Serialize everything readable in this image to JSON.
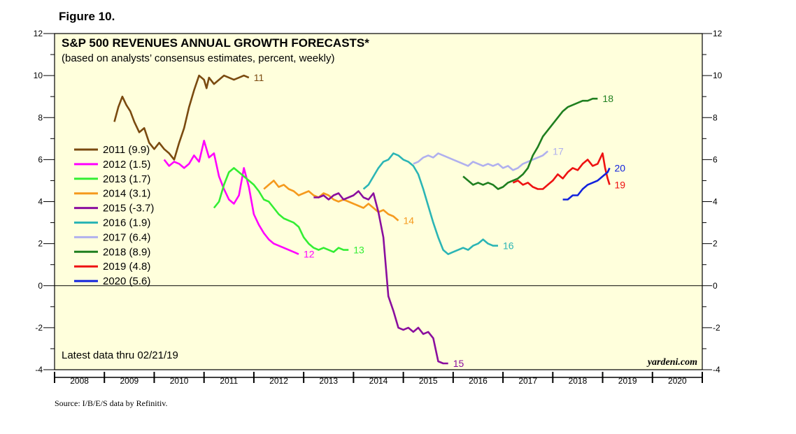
{
  "figure_label": "Figure 10.",
  "source": "Source: I/B/E/S data by Refinitiv.",
  "chart_data": {
    "type": "line",
    "title": "S&P 500 REVENUES ANNUAL GROWTH FORECASTS*",
    "subtitle": "(based on analysts’ consensus estimates, percent, weekly)",
    "note": "Latest data thru 02/21/19",
    "brand": "yardeni.com",
    "ylim": [
      -4,
      12
    ],
    "yticks": [
      -4,
      -2,
      0,
      2,
      4,
      6,
      8,
      10,
      12
    ],
    "xlim": [
      2008,
      2021
    ],
    "xtick_labels": [
      "2008",
      "2009",
      "2010",
      "2011",
      "2012",
      "2013",
      "2014",
      "2015",
      "2016",
      "2017",
      "2018",
      "2019",
      "2020"
    ],
    "grid": false,
    "legend_position": "left",
    "series": [
      {
        "name": "2011 (9.9)",
        "end_label": "11",
        "color": "#7a4a0f",
        "x": [
          2009.2,
          2009.28,
          2009.36,
          2009.44,
          2009.52,
          2009.6,
          2009.7,
          2009.8,
          2009.9,
          2010.0,
          2010.1,
          2010.2,
          2010.3,
          2010.4,
          2010.5,
          2010.6,
          2010.7,
          2010.8,
          2010.9,
          2011.0,
          2011.05,
          2011.1,
          2011.2,
          2011.3,
          2011.4,
          2011.5,
          2011.6,
          2011.7,
          2011.8,
          2011.9
        ],
        "y": [
          7.8,
          8.5,
          9.0,
          8.6,
          8.3,
          7.8,
          7.3,
          7.5,
          6.8,
          6.5,
          6.8,
          6.5,
          6.3,
          6.0,
          6.8,
          7.5,
          8.5,
          9.3,
          10.0,
          9.8,
          9.4,
          9.9,
          9.6,
          9.8,
          10.0,
          9.9,
          9.8,
          9.9,
          10.0,
          9.9
        ]
      },
      {
        "name": "2012 (1.5)",
        "end_label": "12",
        "color": "#ff00ff",
        "x": [
          2010.2,
          2010.3,
          2010.4,
          2010.5,
          2010.6,
          2010.7,
          2010.8,
          2010.9,
          2011.0,
          2011.1,
          2011.2,
          2011.3,
          2011.4,
          2011.5,
          2011.6,
          2011.7,
          2011.8,
          2011.9,
          2012.0,
          2012.1,
          2012.2,
          2012.3,
          2012.4,
          2012.5,
          2012.6,
          2012.7,
          2012.8,
          2012.9
        ],
        "y": [
          6.0,
          5.7,
          5.9,
          5.8,
          5.6,
          5.8,
          6.2,
          5.9,
          6.9,
          6.1,
          6.3,
          5.2,
          4.6,
          4.1,
          3.9,
          4.3,
          5.6,
          4.7,
          3.4,
          2.9,
          2.5,
          2.2,
          2.0,
          1.9,
          1.8,
          1.7,
          1.6,
          1.5
        ]
      },
      {
        "name": "2013 (1.7)",
        "end_label": "13",
        "color": "#33ee33",
        "x": [
          2011.2,
          2011.3,
          2011.4,
          2011.5,
          2011.6,
          2011.7,
          2011.8,
          2011.9,
          2012.0,
          2012.1,
          2012.2,
          2012.3,
          2012.4,
          2012.5,
          2012.6,
          2012.7,
          2012.8,
          2012.9,
          2013.0,
          2013.1,
          2013.2,
          2013.3,
          2013.4,
          2013.5,
          2013.6,
          2013.7,
          2013.8,
          2013.9
        ],
        "y": [
          3.7,
          4.0,
          4.8,
          5.4,
          5.6,
          5.4,
          5.2,
          5.0,
          4.8,
          4.5,
          4.1,
          4.0,
          3.7,
          3.4,
          3.2,
          3.1,
          3.0,
          2.8,
          2.3,
          2.0,
          1.8,
          1.7,
          1.8,
          1.7,
          1.6,
          1.8,
          1.7,
          1.7
        ]
      },
      {
        "name": "2014 (3.1)",
        "end_label": "14",
        "color": "#f59a1d",
        "x": [
          2012.2,
          2012.3,
          2012.4,
          2012.5,
          2012.6,
          2012.7,
          2012.8,
          2012.9,
          2013.0,
          2013.1,
          2013.2,
          2013.3,
          2013.4,
          2013.5,
          2013.6,
          2013.7,
          2013.8,
          2013.9,
          2014.0,
          2014.1,
          2014.2,
          2014.3,
          2014.4,
          2014.5,
          2014.6,
          2014.7,
          2014.8,
          2014.9
        ],
        "y": [
          4.6,
          4.8,
          5.0,
          4.7,
          4.8,
          4.6,
          4.5,
          4.3,
          4.4,
          4.5,
          4.3,
          4.2,
          4.4,
          4.3,
          4.1,
          4.0,
          4.1,
          4.0,
          3.9,
          3.8,
          3.7,
          3.9,
          3.7,
          3.5,
          3.6,
          3.4,
          3.3,
          3.1
        ]
      },
      {
        "name": "2015 (-3.7)",
        "end_label": "15",
        "color": "#8a0e9e",
        "x": [
          2013.2,
          2013.3,
          2013.4,
          2013.5,
          2013.6,
          2013.7,
          2013.8,
          2013.9,
          2014.0,
          2014.1,
          2014.2,
          2014.3,
          2014.4,
          2014.5,
          2014.6,
          2014.7,
          2014.8,
          2014.9,
          2015.0,
          2015.1,
          2015.2,
          2015.3,
          2015.4,
          2015.5,
          2015.6,
          2015.7,
          2015.8,
          2015.9
        ],
        "y": [
          4.2,
          4.2,
          4.3,
          4.1,
          4.3,
          4.4,
          4.1,
          4.2,
          4.3,
          4.5,
          4.2,
          4.1,
          4.4,
          3.5,
          2.3,
          -0.5,
          -1.2,
          -2.0,
          -2.1,
          -2.0,
          -2.2,
          -2.0,
          -2.3,
          -2.2,
          -2.5,
          -3.6,
          -3.7,
          -3.7
        ]
      },
      {
        "name": "2016 (1.9)",
        "end_label": "16",
        "color": "#2bb5b5",
        "x": [
          2014.2,
          2014.3,
          2014.4,
          2014.5,
          2014.6,
          2014.7,
          2014.8,
          2014.9,
          2015.0,
          2015.1,
          2015.2,
          2015.3,
          2015.4,
          2015.5,
          2015.6,
          2015.7,
          2015.8,
          2015.9,
          2016.0,
          2016.1,
          2016.2,
          2016.3,
          2016.4,
          2016.5,
          2016.6,
          2016.7,
          2016.8,
          2016.9
        ],
        "y": [
          4.6,
          4.8,
          5.2,
          5.6,
          5.9,
          6.0,
          6.3,
          6.2,
          6.0,
          5.9,
          5.7,
          5.3,
          4.6,
          3.8,
          3.0,
          2.3,
          1.7,
          1.5,
          1.6,
          1.7,
          1.8,
          1.7,
          1.9,
          2.0,
          2.2,
          2.0,
          1.9,
          1.9
        ]
      },
      {
        "name": "2017 (6.4)",
        "end_label": "17",
        "color": "#b0b0ee",
        "x": [
          2015.2,
          2015.3,
          2015.4,
          2015.5,
          2015.6,
          2015.7,
          2015.8,
          2015.9,
          2016.0,
          2016.1,
          2016.2,
          2016.3,
          2016.4,
          2016.5,
          2016.6,
          2016.7,
          2016.8,
          2016.9,
          2017.0,
          2017.1,
          2017.2,
          2017.3,
          2017.4,
          2017.5,
          2017.6,
          2017.7,
          2017.8,
          2017.9
        ],
        "y": [
          5.8,
          5.9,
          6.1,
          6.2,
          6.1,
          6.3,
          6.2,
          6.1,
          6.0,
          5.9,
          5.8,
          5.7,
          5.9,
          5.8,
          5.7,
          5.8,
          5.7,
          5.8,
          5.6,
          5.7,
          5.5,
          5.6,
          5.8,
          5.9,
          6.0,
          6.1,
          6.2,
          6.4
        ]
      },
      {
        "name": "2018 (8.9)",
        "end_label": "18",
        "color": "#1f7f1f",
        "x": [
          2016.2,
          2016.3,
          2016.4,
          2016.5,
          2016.6,
          2016.7,
          2016.8,
          2016.9,
          2017.0,
          2017.1,
          2017.2,
          2017.3,
          2017.4,
          2017.5,
          2017.6,
          2017.7,
          2017.8,
          2017.9,
          2018.0,
          2018.1,
          2018.2,
          2018.3,
          2018.4,
          2018.5,
          2018.6,
          2018.7,
          2018.8,
          2018.9
        ],
        "y": [
          5.2,
          5.0,
          4.8,
          4.9,
          4.8,
          4.9,
          4.8,
          4.6,
          4.7,
          4.9,
          5.0,
          5.1,
          5.3,
          5.6,
          6.2,
          6.6,
          7.1,
          7.4,
          7.7,
          8.0,
          8.3,
          8.5,
          8.6,
          8.7,
          8.8,
          8.8,
          8.9,
          8.9
        ]
      },
      {
        "name": "2019 (4.8)",
        "end_label": "19",
        "color": "#ee1111",
        "x": [
          2017.2,
          2017.3,
          2017.4,
          2017.5,
          2017.6,
          2017.7,
          2017.8,
          2017.9,
          2018.0,
          2018.1,
          2018.2,
          2018.3,
          2018.4,
          2018.5,
          2018.6,
          2018.7,
          2018.8,
          2018.9,
          2019.0,
          2019.05,
          2019.1,
          2019.14
        ],
        "y": [
          4.9,
          5.0,
          4.8,
          4.9,
          4.7,
          4.6,
          4.6,
          4.8,
          5.0,
          5.3,
          5.1,
          5.4,
          5.6,
          5.5,
          5.8,
          6.0,
          5.7,
          5.8,
          6.3,
          5.6,
          5.1,
          4.8
        ]
      },
      {
        "name": "2020 (5.6)",
        "end_label": "20",
        "color": "#1122dd",
        "x": [
          2018.2,
          2018.3,
          2018.4,
          2018.5,
          2018.6,
          2018.7,
          2018.8,
          2018.9,
          2019.0,
          2019.1,
          2019.14
        ],
        "y": [
          4.1,
          4.1,
          4.3,
          4.3,
          4.6,
          4.8,
          4.9,
          5.0,
          5.2,
          5.4,
          5.6
        ]
      }
    ]
  }
}
